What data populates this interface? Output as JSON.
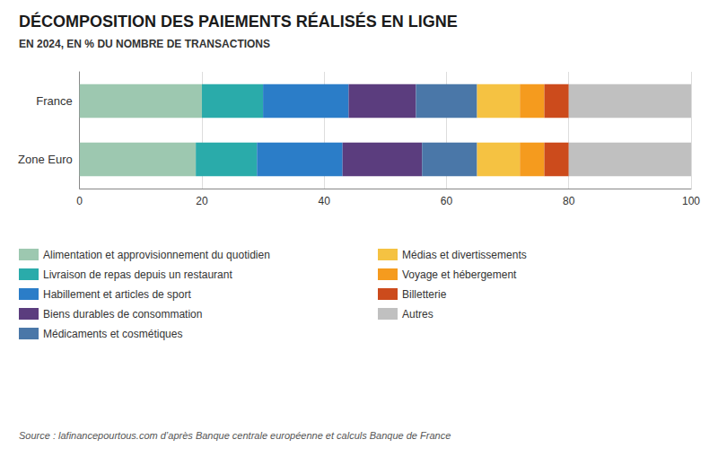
{
  "chart_data": {
    "type": "bar",
    "orientation": "horizontal",
    "stacked": true,
    "title": "DÉCOMPOSITION DES PAIEMENTS RÉALISÉS EN LIGNE",
    "subtitle": "EN 2024, EN % DU NOMBRE DE TRANSACTIONS",
    "source": "Source : lafinancepourtous.com d’après Banque centrale européenne et calculs Banque de France",
    "categories": [
      "Zone Euro",
      "France"
    ],
    "series": [
      {
        "name": "Alimentation et approvisionnement du quotidien",
        "color": "#9DC8B0",
        "values": [
          19,
          20
        ]
      },
      {
        "name": "Livraison de repas depuis un restaurant",
        "color": "#2AABAA",
        "values": [
          10,
          10
        ]
      },
      {
        "name": "Habillement et articles de sport",
        "color": "#2B7DC8",
        "values": [
          14,
          14
        ]
      },
      {
        "name": "Biens durables de consommation",
        "color": "#5B3D7E",
        "values": [
          13,
          11
        ]
      },
      {
        "name": "Médicaments et cosmétiques",
        "color": "#4A77A8",
        "values": [
          9,
          10
        ]
      },
      {
        "name": "Médias et divertissements",
        "color": "#F5C242",
        "values": [
          7,
          7
        ]
      },
      {
        "name": "Voyage et hébergement",
        "color": "#F59B1E",
        "values": [
          4,
          4
        ]
      },
      {
        "name": "Billetterie",
        "color": "#CC4B1C",
        "values": [
          4,
          4
        ]
      },
      {
        "name": "Autres",
        "color": "#C0C0C0",
        "values": [
          20,
          20
        ]
      }
    ],
    "xlim": [
      0,
      100
    ],
    "xticks": [
      0,
      20,
      40,
      60,
      80,
      100
    ],
    "grid": true,
    "legend": "bottom"
  }
}
